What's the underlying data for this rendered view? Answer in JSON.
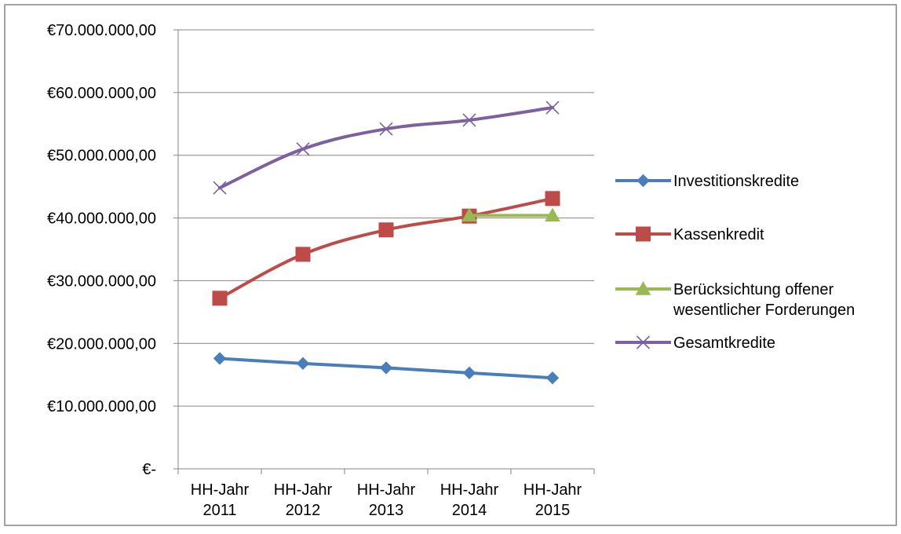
{
  "chart_data": {
    "type": "line",
    "title": "",
    "xlabel": "",
    "ylabel": "",
    "categories": [
      [
        "HH-Jahr",
        "2011"
      ],
      [
        "HH-Jahr",
        "2012"
      ],
      [
        "HH-Jahr",
        "2013"
      ],
      [
        "HH-Jahr",
        "2014"
      ],
      [
        "HH-Jahr",
        "2015"
      ]
    ],
    "ylim": [
      0,
      70000000
    ],
    "y_ticks": [
      0,
      10000000,
      20000000,
      30000000,
      40000000,
      50000000,
      60000000,
      70000000
    ],
    "y_tick_labels": [
      "€-",
      "€10.000.000,00",
      "€20.000.000,00",
      "€30.000.000,00",
      "€40.000.000,00",
      "€50.000.000,00",
      "€60.000.000,00",
      "€70.000.000,00"
    ],
    "grid": true,
    "legend_position": "right",
    "series": [
      {
        "name": "Investitionskredite",
        "color": "#4a7ebb",
        "marker": "diamond",
        "points": [
          [
            0,
            17600000
          ],
          [
            1,
            16800000
          ],
          [
            2,
            16100000
          ],
          [
            3,
            15300000
          ],
          [
            4,
            14500000
          ]
        ]
      },
      {
        "name": "Kassenkredit",
        "color": "#be4b48",
        "marker": "square",
        "points": [
          [
            0,
            27200000
          ],
          [
            1,
            34200000
          ],
          [
            2,
            38100000
          ],
          [
            3,
            40300000
          ],
          [
            4,
            43100000
          ]
        ]
      },
      {
        "name_lines": [
          "Berücksichtung offener",
          "wesentlicher Forderungen"
        ],
        "color": "#98b954",
        "marker": "triangle",
        "points": [
          [
            3,
            40400000
          ],
          [
            4,
            40400000
          ]
        ]
      },
      {
        "name": "Gesamtkredite",
        "color": "#7d60a0",
        "marker": "x",
        "points": [
          [
            0,
            44800000
          ],
          [
            1,
            51000000
          ],
          [
            2,
            54200000
          ],
          [
            3,
            55600000
          ],
          [
            4,
            57600000
          ]
        ]
      }
    ]
  }
}
